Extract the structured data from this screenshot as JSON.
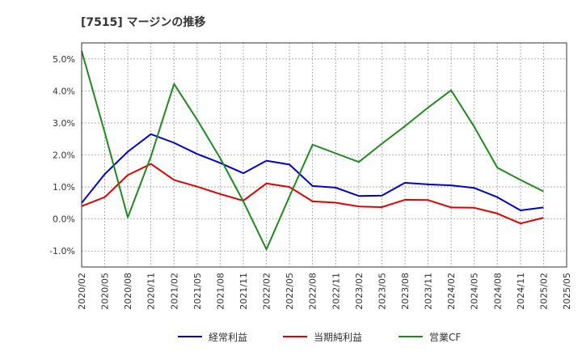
{
  "chart_data": {
    "type": "line",
    "title": "[7515]  マージンの推移",
    "xlabel": "",
    "ylabel": "",
    "x": [
      "2020/02",
      "2020/05",
      "2020/08",
      "2020/11",
      "2021/02",
      "2021/05",
      "2021/08",
      "2021/11",
      "2022/02",
      "2022/05",
      "2022/08",
      "2022/11",
      "2023/02",
      "2023/05",
      "2023/08",
      "2023/11",
      "2024/02",
      "2024/05",
      "2024/08",
      "2024/11",
      "2025/02",
      "2025/05"
    ],
    "y_ticks": [
      "-1.0%",
      "0.0%",
      "1.0%",
      "2.0%",
      "3.0%",
      "4.0%",
      "5.0%"
    ],
    "ylim": [
      -1.5,
      5.5
    ],
    "grid": true,
    "legend_position": "bottom",
    "series": [
      {
        "name": "経常利益",
        "color": "#0000cc",
        "values": [
          0.5,
          1.4,
          2.1,
          2.65,
          2.38,
          2.03,
          1.75,
          1.43,
          1.82,
          1.7,
          1.03,
          0.98,
          0.72,
          0.73,
          1.13,
          1.08,
          1.05,
          0.97,
          0.68,
          0.27,
          0.36,
          null
        ]
      },
      {
        "name": "当期純利益",
        "color": "#dd0000",
        "values": [
          0.4,
          0.68,
          1.37,
          1.72,
          1.22,
          1.01,
          0.78,
          0.57,
          1.11,
          1.0,
          0.55,
          0.51,
          0.39,
          0.37,
          0.6,
          0.59,
          0.36,
          0.35,
          0.17,
          -0.14,
          0.04,
          null
        ]
      },
      {
        "name": "営業CF",
        "color": "#228822",
        "values": [
          5.25,
          2.7,
          0.05,
          1.95,
          4.22,
          3.1,
          1.9,
          0.55,
          -0.95,
          0.7,
          2.32,
          2.05,
          1.78,
          2.35,
          2.9,
          3.48,
          4.02,
          2.88,
          1.6,
          1.22,
          0.86,
          null
        ]
      }
    ]
  }
}
